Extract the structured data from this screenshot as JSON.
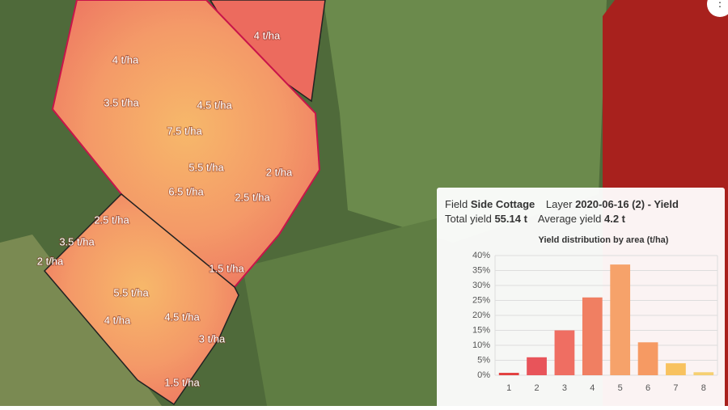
{
  "map": {
    "labels": [
      "4 t/ha",
      "4 t/ha",
      "3.5 t/ha",
      "4.5 t/ha",
      "7.5 t/ha",
      "5.5 t/ha",
      "2 t/ha",
      "6.5 t/ha",
      "2.5 t/ha",
      "2.5 t/ha",
      "3.5 t/ha",
      "2 t/ha",
      "1.5 t/ha",
      "5.5 t/ha",
      "4.5 t/ha",
      "4 t/ha",
      "3 t/ha",
      "1.5 t/ha"
    ]
  },
  "popup": {
    "field_label": "Field",
    "field_name": "Side Cottage",
    "layer_label": "Layer",
    "layer_name": "2020-06-16 (2) - Yield",
    "total_label": "Total yield",
    "total_value": "55.14 t",
    "average_label": "Average yield",
    "average_value": "4.2 t"
  },
  "chart_data": {
    "type": "bar",
    "title": "Yield distribution by area (t/ha)",
    "categories": [
      "1",
      "2",
      "3",
      "4",
      "5",
      "6",
      "7",
      "8"
    ],
    "values": [
      0.8,
      6,
      15,
      26,
      37,
      11,
      4,
      1
    ],
    "colors": [
      "#e2403f",
      "#e8545a",
      "#ef6e62",
      "#f07f62",
      "#f6a26a",
      "#f69a63",
      "#f8c25f",
      "#f6cf72"
    ],
    "ylim": [
      0,
      40
    ],
    "yticks": [
      {
        "value": 0,
        "label": "0%"
      },
      {
        "value": 5,
        "label": "5%"
      },
      {
        "value": 10,
        "label": "10%"
      },
      {
        "value": 15,
        "label": "15%"
      },
      {
        "value": 20,
        "label": "20%"
      },
      {
        "value": 25,
        "label": "25%"
      },
      {
        "value": 30,
        "label": "30%"
      },
      {
        "value": 35,
        "label": "35%"
      },
      {
        "value": 40,
        "label": "40%"
      }
    ],
    "grid": true
  }
}
